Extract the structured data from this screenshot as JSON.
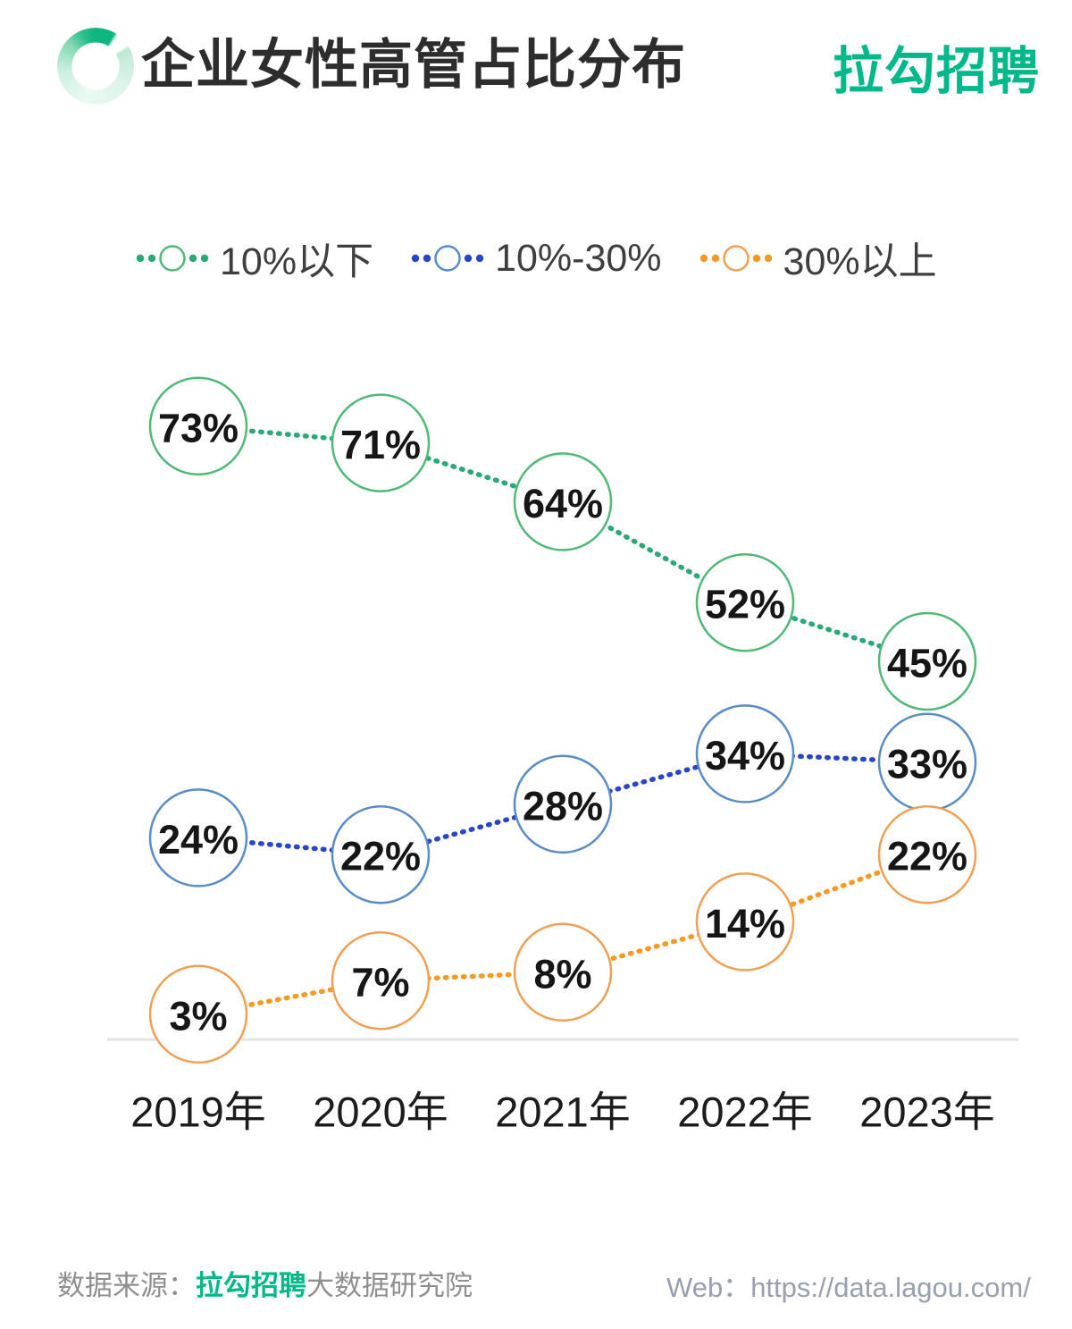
{
  "header": {
    "title": "企业女性高管占比分布",
    "brand": "拉勾招聘",
    "logo_icon": "donut-gradient-icon",
    "accent_color": "#00b88a"
  },
  "chart_data": {
    "type": "line",
    "line_style": "dotted",
    "marker": "open-circle-with-value-label",
    "title": "企业女性高管占比分布",
    "categories": [
      "2019年",
      "2020年",
      "2021年",
      "2022年",
      "2023年"
    ],
    "series": [
      {
        "name": "10%以下",
        "values": [
          73,
          71,
          64,
          52,
          45
        ],
        "labels": [
          "73%",
          "71%",
          "64%",
          "52%",
          "45%"
        ],
        "circle_color": "#50b978",
        "line_color": "#2aa876"
      },
      {
        "name": "10%-30%",
        "values": [
          24,
          22,
          28,
          34,
          33
        ],
        "labels": [
          "24%",
          "22%",
          "28%",
          "34%",
          "33%"
        ],
        "circle_color": "#5a8cc8",
        "line_color": "#2a46c8"
      },
      {
        "name": "30%以上",
        "values": [
          3,
          7,
          8,
          14,
          22
        ],
        "labels": [
          "3%",
          "7%",
          "8%",
          "14%",
          "22%"
        ],
        "circle_color": "#f0a055",
        "line_color": "#f59a23"
      }
    ],
    "value_suffix": "%",
    "xlabel": "",
    "ylabel": "",
    "ylim": [
      0,
      80
    ],
    "grid": false,
    "y_axis_visible": false,
    "baseline_visible": true,
    "legend_position": "top"
  },
  "footer": {
    "source_prefix": "数据来源：",
    "source_brand": "拉勾招聘",
    "source_suffix": "大数据研究院",
    "web_label": "Web：",
    "web_url": "https://data.lagou.com/"
  }
}
